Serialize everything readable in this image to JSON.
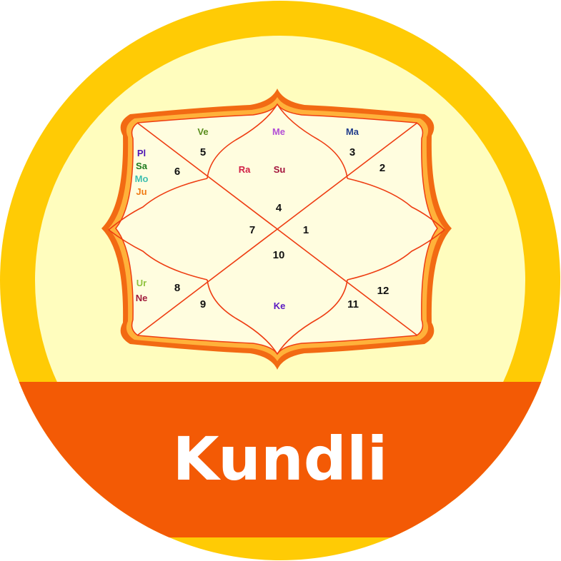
{
  "title": "Kundli",
  "colors": {
    "outer_ring": "#FFCB05",
    "inner_disc": "#FFFDBE",
    "chart_fill": "#FFFDDF",
    "frame_outer": "#F26A13",
    "frame_inner": "#FFB13A",
    "lines": "#EE3D12",
    "banner": "#F35A05",
    "text": "#111111"
  },
  "houses": [
    {
      "number": "1"
    },
    {
      "number": "2"
    },
    {
      "number": "3"
    },
    {
      "number": "4"
    },
    {
      "number": "5"
    },
    {
      "number": "6"
    },
    {
      "number": "7"
    },
    {
      "number": "8"
    },
    {
      "number": "9"
    },
    {
      "number": "10"
    },
    {
      "number": "11"
    },
    {
      "number": "12"
    }
  ],
  "planets": [
    {
      "label": "Ve",
      "color": "#5B8E1E"
    },
    {
      "label": "Me",
      "color": "#B34FD6"
    },
    {
      "label": "Ma",
      "color": "#233E8C"
    },
    {
      "label": "Pl",
      "color": "#4E16B5"
    },
    {
      "label": "Sa",
      "color": "#1E7A1E"
    },
    {
      "label": "Mo",
      "color": "#3EBFB0"
    },
    {
      "label": "Ju",
      "color": "#F07B13"
    },
    {
      "label": "Ra",
      "color": "#D21F45"
    },
    {
      "label": "Su",
      "color": "#A3143C"
    },
    {
      "label": "Ur",
      "color": "#8FC23E"
    },
    {
      "label": "Ne",
      "color": "#A01C3C"
    },
    {
      "label": "Ke",
      "color": "#5A18C2"
    }
  ]
}
